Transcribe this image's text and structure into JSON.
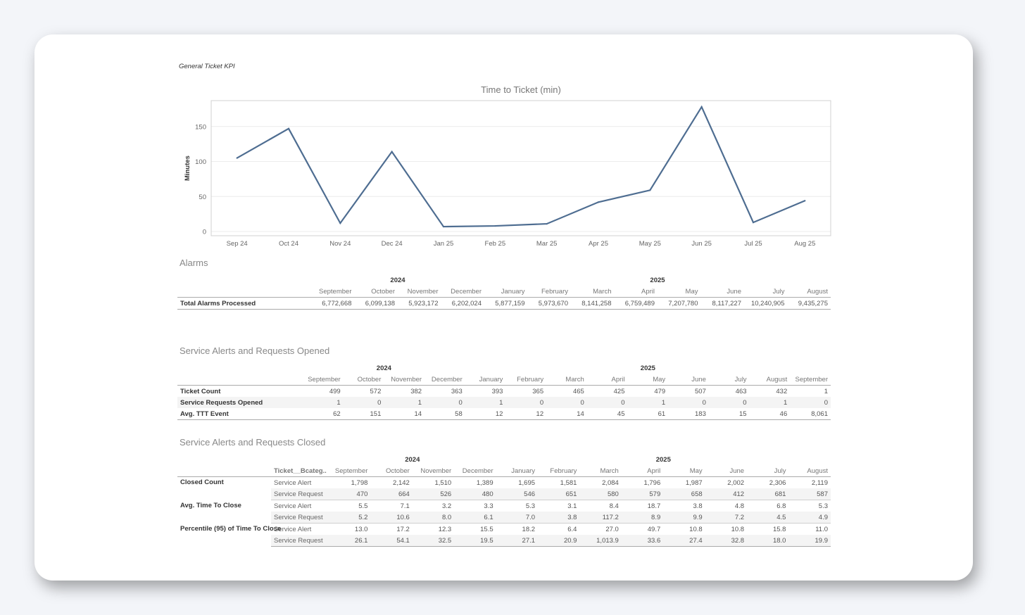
{
  "page": {
    "title": "General Ticket KPI"
  },
  "chart_data": {
    "type": "line",
    "title": "Time to Ticket (min)",
    "xlabel": "",
    "ylabel": "Minutes",
    "categories": [
      "Sep 24",
      "Oct 24",
      "Nov 24",
      "Dec 24",
      "Jan 25",
      "Feb 25",
      "Mar 25",
      "Apr 25",
      "May 25",
      "Jun 25",
      "Jul 25",
      "Aug 25"
    ],
    "values": [
      105,
      147,
      12,
      114,
      7,
      8,
      11,
      42,
      59,
      178,
      13,
      44
    ],
    "yticks": [
      0,
      50,
      100,
      150
    ],
    "ylim": [
      -6,
      187
    ],
    "grid": true,
    "line_color": "#4e6d91"
  },
  "alarms": {
    "title": "Alarms",
    "years": [
      {
        "label": "2024",
        "span": 4
      },
      {
        "label": "2025",
        "span": 8
      }
    ],
    "months": [
      "September",
      "October",
      "November",
      "December",
      "January",
      "February",
      "March",
      "April",
      "May",
      "June",
      "July",
      "August"
    ],
    "rows": [
      {
        "label": "Total Alarms Processed",
        "values": [
          "6,772,668",
          "6,099,138",
          "5,923,172",
          "6,202,024",
          "5,877,159",
          "5,973,670",
          "8,141,258",
          "6,759,489",
          "7,207,780",
          "8,117,227",
          "10,240,905",
          "9,435,275"
        ]
      }
    ]
  },
  "opened": {
    "title": "Service Alerts and Requests Opened",
    "years": [
      {
        "label": "2024",
        "span": 4
      },
      {
        "label": "2025",
        "span": 9
      }
    ],
    "months": [
      "September",
      "October",
      "November",
      "December",
      "January",
      "February",
      "March",
      "April",
      "May",
      "June",
      "July",
      "August",
      "September"
    ],
    "rows": [
      {
        "label": "Ticket Count",
        "values": [
          "499",
          "572",
          "382",
          "363",
          "393",
          "365",
          "465",
          "425",
          "479",
          "507",
          "463",
          "432",
          "1"
        ]
      },
      {
        "label": "Service Requests Opened",
        "values": [
          "1",
          "0",
          "1",
          "0",
          "1",
          "0",
          "0",
          "0",
          "1",
          "0",
          "0",
          "1",
          "0"
        ]
      },
      {
        "label": "Avg. TTT Event",
        "values": [
          "62",
          "151",
          "14",
          "58",
          "12",
          "12",
          "14",
          "45",
          "61",
          "183",
          "15",
          "46",
          "8,061"
        ]
      }
    ]
  },
  "closed": {
    "title": "Service Alerts and Requests Closed",
    "sub_header": "Ticket__Bcateg..",
    "years": [
      {
        "label": "2024",
        "span": 4
      },
      {
        "label": "2025",
        "span": 8
      }
    ],
    "months": [
      "September",
      "October",
      "November",
      "December",
      "January",
      "February",
      "March",
      "April",
      "May",
      "June",
      "July",
      "August"
    ],
    "groups": [
      {
        "label": "Closed Count",
        "rows": [
          {
            "sub": "Service Alert",
            "values": [
              "1,798",
              "2,142",
              "1,510",
              "1,389",
              "1,695",
              "1,581",
              "2,084",
              "1,796",
              "1,987",
              "2,002",
              "2,306",
              "2,119"
            ]
          },
          {
            "sub": "Service Request",
            "values": [
              "470",
              "664",
              "526",
              "480",
              "546",
              "651",
              "580",
              "579",
              "658",
              "412",
              "681",
              "587"
            ]
          }
        ]
      },
      {
        "label": "Avg. Time To Close",
        "rows": [
          {
            "sub": "Service Alert",
            "values": [
              "5.5",
              "7.1",
              "3.2",
              "3.3",
              "5.3",
              "3.1",
              "8.4",
              "18.7",
              "3.8",
              "4.8",
              "6.8",
              "5.3"
            ]
          },
          {
            "sub": "Service Request",
            "values": [
              "5.2",
              "10.6",
              "8.0",
              "6.1",
              "7.0",
              "3.8",
              "117.2",
              "8.9",
              "9.9",
              "7.2",
              "4.5",
              "4.9"
            ]
          }
        ]
      },
      {
        "label": "Percentile (95) of Time To Close",
        "rows": [
          {
            "sub": "Service Alert",
            "values": [
              "13.0",
              "17.2",
              "12.3",
              "15.5",
              "18.2",
              "6.4",
              "27.0",
              "49.7",
              "10.8",
              "10.8",
              "15.8",
              "11.0"
            ]
          },
          {
            "sub": "Service Request",
            "values": [
              "26.1",
              "54.1",
              "32.5",
              "19.5",
              "27.1",
              "20.9",
              "1,013.9",
              "33.6",
              "27.4",
              "32.8",
              "18.0",
              "19.9"
            ]
          }
        ]
      }
    ]
  }
}
